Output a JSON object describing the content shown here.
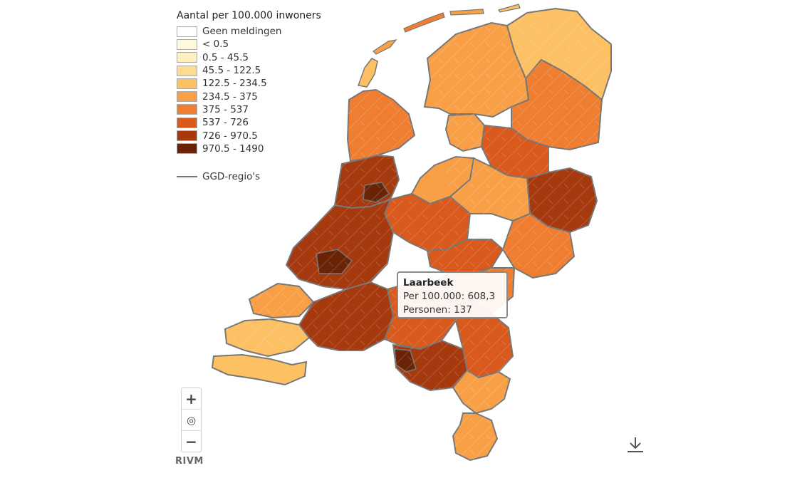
{
  "legend": {
    "title": "Aantal per 100.000 inwoners",
    "classes": [
      {
        "label": "Geen meldingen",
        "color": "#ffffff"
      },
      {
        "label": "< 0.5",
        "color": "#fff9dc"
      },
      {
        "label": "0.5 - 45.5",
        "color": "#feeec0"
      },
      {
        "label": "45.5 - 122.5",
        "color": "#fddc8e"
      },
      {
        "label": "122.5 - 234.5",
        "color": "#fdc063"
      },
      {
        "label": "234.5 - 375",
        "color": "#f9a046"
      },
      {
        "label": "375 - 537",
        "color": "#f07e30"
      },
      {
        "label": "537 - 726",
        "color": "#d95a1c"
      },
      {
        "label": "726 - 970.5",
        "color": "#a63a0e"
      },
      {
        "label": "970.5 - 1490",
        "color": "#6b2305"
      }
    ],
    "ggd_label": "GGD-regio's",
    "ggd_color": "#777777"
  },
  "tooltip": {
    "name": "Laarbeek",
    "per100k": "Per 100.000: 608,3",
    "persons": "Personen: 137"
  },
  "controls": {
    "zoom_in": "+",
    "locate": "◎",
    "zoom_out": "−"
  },
  "branding": "RIVM",
  "download_icon": "download-icon"
}
